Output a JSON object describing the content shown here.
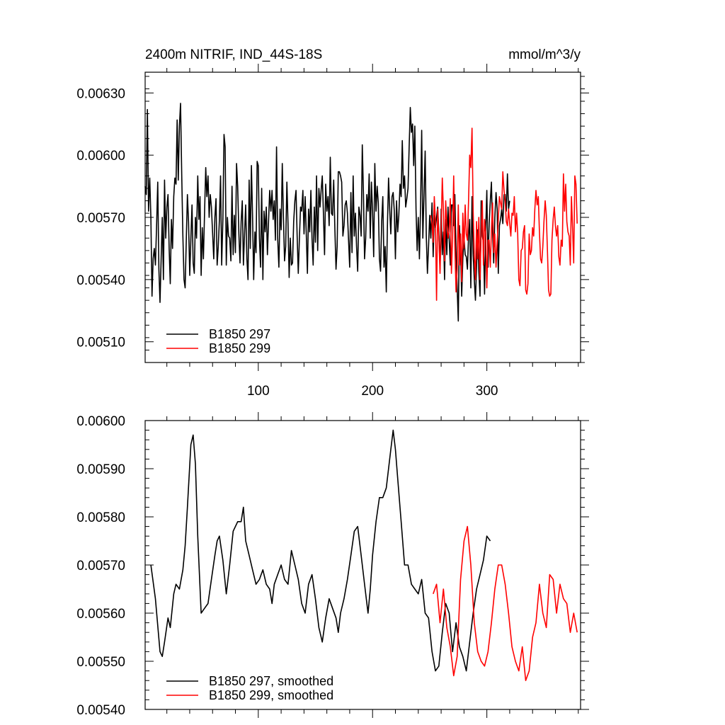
{
  "figure": {
    "title_left": "2400m NITRIF, IND_44S-18S",
    "title_right": "mmol/m^3/y"
  },
  "colors": {
    "series_1": "#000000",
    "series_2": "#ff0000"
  },
  "chart_data": [
    {
      "type": "line",
      "panel": "top",
      "xlim": [
        1,
        382
      ],
      "ylim": [
        0.005,
        0.0064
      ],
      "x_ticks": [
        100,
        200,
        300
      ],
      "x_tick_labels": [
        "100",
        "200",
        "300"
      ],
      "y_ticks": [
        0.0051,
        0.0054,
        0.0057,
        0.006,
        0.0063
      ],
      "y_tick_labels": [
        "0.00510",
        "0.00540",
        "0.00570",
        "0.00600",
        "0.00630"
      ],
      "grid": false,
      "legend_position": "bottom-left",
      "series": [
        {
          "name": "B1850 297",
          "color": "#000000",
          "x_start": 1,
          "values": [
            0.00585,
            0.00581,
            0.00622,
            0.00573,
            0.00589,
            0.0057,
            0.00532,
            0.0055,
            0.00555,
            0.00547,
            0.00565,
            0.00587,
            0.00545,
            0.00529,
            0.0055,
            0.0057,
            0.0054,
            0.00588,
            0.0056,
            0.00575,
            0.00581,
            0.00555,
            0.00538,
            0.00569,
            0.00555,
            0.0058,
            0.00589,
            0.00586,
            0.00617,
            0.00588,
            0.00614,
            0.00625,
            0.0059,
            0.00561,
            0.0054,
            0.00536,
            0.00559,
            0.00581,
            0.00568,
            0.00542,
            0.0056,
            0.00576,
            0.00548,
            0.00543,
            0.0057,
            0.0056,
            0.0059,
            0.00569,
            0.0058,
            0.00542,
            0.00565,
            0.0055,
            0.00572,
            0.00594,
            0.0058,
            0.0059,
            0.0057,
            0.00581,
            0.00575,
            0.00563,
            0.0055,
            0.0057,
            0.00579,
            0.00547,
            0.00556,
            0.00569,
            0.0059,
            0.00547,
            0.00569,
            0.0061,
            0.00604,
            0.00547,
            0.0057,
            0.00561,
            0.0056,
            0.00549,
            0.00585,
            0.00552,
            0.00571,
            0.00553,
            0.00596,
            0.00585,
            0.00562,
            0.00548,
            0.00568,
            0.00578,
            0.00547,
            0.00562,
            0.00576,
            0.0055,
            0.0054,
            0.00588,
            0.00555,
            0.00595,
            0.00571,
            0.0054,
            0.00563,
            0.00553,
            0.00597,
            0.00595,
            0.0056,
            0.00546,
            0.00584,
            0.0054,
            0.00573,
            0.00563,
            0.00575,
            0.00552,
            0.00568,
            0.00583,
            0.00573,
            0.00583,
            0.00569,
            0.00578,
            0.00559,
            0.00604,
            0.0056,
            0.00546,
            0.00574,
            0.00564,
            0.00596,
            0.0057,
            0.00549,
            0.00556,
            0.00587,
            0.00567,
            0.00541,
            0.0056,
            0.00547,
            0.00548,
            0.00568,
            0.00578,
            0.00583,
            0.00561,
            0.00543,
            0.0056,
            0.00575,
            0.00573,
            0.00583,
            0.00562,
            0.0058,
            0.00562,
            0.00543,
            0.00574,
            0.00563,
            0.00583,
            0.0056,
            0.00547,
            0.00575,
            0.00558,
            0.0059,
            0.00554,
            0.00584,
            0.00575,
            0.00583,
            0.0059,
            0.00572,
            0.00552,
            0.00586,
            0.00573,
            0.0058,
            0.00566,
            0.00599,
            0.00572,
            0.00571,
            0.00588,
            0.00564,
            0.00545,
            0.00556,
            0.00592,
            0.00592,
            0.0059,
            0.00587,
            0.00561,
            0.00566,
            0.00576,
            0.00578,
            0.00572,
            0.00559,
            0.00546,
            0.00582,
            0.00553,
            0.0059,
            0.00561,
            0.00572,
            0.00556,
            0.00544,
            0.00575,
            0.00571,
            0.00561,
            0.00605,
            0.00582,
            0.0055,
            0.0056,
            0.00581,
            0.00573,
            0.00591,
            0.0056,
            0.00587,
            0.00573,
            0.00551,
            0.00596,
            0.00573,
            0.00585,
            0.00577,
            0.0055,
            0.00544,
            0.00568,
            0.0058,
            0.00546,
            0.00556,
            0.00534,
            0.00566,
            0.00589,
            0.00574,
            0.00562,
            0.0058,
            0.00582,
            0.00573,
            0.0055,
            0.00578,
            0.00563,
            0.00571,
            0.00586,
            0.0058,
            0.00607,
            0.00584,
            0.0059,
            0.00575,
            0.00579,
            0.00584,
            0.00604,
            0.00623,
            0.00611,
            0.00615,
            0.00595,
            0.00614,
            0.00574,
            0.00554,
            0.0057,
            0.0055,
            0.00575,
            0.00612,
            0.0056,
            0.00581,
            0.00602,
            0.00561,
            0.00543,
            0.00556,
            0.00571,
            0.0056,
            0.00577,
            0.00551,
            0.00571,
            0.00565,
            0.0057,
            0.00575,
            0.00563,
            0.00545,
            0.00574,
            0.00552,
            0.00563,
            0.0054,
            0.00569,
            0.00552,
            0.00575,
            0.0056,
            0.00547,
            0.00576,
            0.00576,
            0.00566,
            0.00581,
            0.00554,
            0.00536,
            0.0052,
            0.00566,
            0.00553,
            0.00532,
            0.0055,
            0.0056,
            0.00552,
            0.00551,
            0.00545,
            0.00561,
            0.00569,
            0.00536,
            0.0058,
            0.00552,
            0.0054,
            0.0053,
            0.00546,
            0.00564,
            0.00544,
            0.00532,
            0.00578,
            0.00561,
            0.00558,
            0.00533,
            0.00564,
            0.00583,
            0.00546,
            0.00567,
            0.00578,
            0.00587,
            0.00563,
            0.00548,
            0.0057,
            0.00582,
            0.00574,
            0.00543,
            0.00566,
            0.00569,
            0.00574,
            0.00567,
            0.00581,
            0.00581,
            0.00573,
            0.00591,
            0.00574,
            0.00578
          ]
        },
        {
          "name": "B1850 299",
          "color": "#ff0000",
          "x_start": 251,
          "values": [
            0.00571,
            0.00567,
            0.00558,
            0.0058,
            0.00568,
            0.0053,
            0.00574,
            0.00561,
            0.00543,
            0.00565,
            0.00589,
            0.00573,
            0.00549,
            0.00578,
            0.00567,
            0.0056,
            0.00563,
            0.00579,
            0.00543,
            0.0056,
            0.0059,
            0.00557,
            0.00534,
            0.00545,
            0.00576,
            0.00547,
            0.00562,
            0.00539,
            0.00572,
            0.00555,
            0.00576,
            0.00562,
            0.00559,
            0.00578,
            0.006,
            0.00594,
            0.00613,
            0.00573,
            0.00552,
            0.0054,
            0.00568,
            0.0055,
            0.0057,
            0.0054,
            0.00563,
            0.00578,
            0.00547,
            0.00569,
            0.00562,
            0.00536,
            0.00559,
            0.00559,
            0.00546,
            0.00564,
            0.00577,
            0.00553,
            0.00562,
            0.00546,
            0.00558,
            0.00569,
            0.0058,
            0.00577,
            0.00574,
            0.00592,
            0.00583,
            0.00578,
            0.00568,
            0.00566,
            0.00574,
            0.00567,
            0.00561,
            0.00572,
            0.00571,
            0.0058,
            0.00563,
            0.00572,
            0.00562,
            0.0054,
            0.00537,
            0.00554,
            0.00555,
            0.00563,
            0.00566,
            0.00535,
            0.00533,
            0.00538,
            0.00562,
            0.00552,
            0.00554,
            0.00565,
            0.00561,
            0.00574,
            0.00583,
            0.00576,
            0.0058,
            0.00563,
            0.0055,
            0.00548,
            0.00556,
            0.00568,
            0.00578,
            0.00571,
            0.00554,
            0.00535,
            0.00532,
            0.00533,
            0.00559,
            0.00569,
            0.00575,
            0.00566,
            0.00561,
            0.00566,
            0.00551,
            0.00547,
            0.00559,
            0.00556,
            0.00591,
            0.00573,
            0.00586,
            0.00568,
            0.00563,
            0.00561,
            0.00547,
            0.0058,
            0.00565,
            0.00548,
            0.0059,
            0.00586,
            0.00567
          ]
        }
      ]
    },
    {
      "type": "line",
      "panel": "bottom",
      "xlim": [
        1,
        382
      ],
      "ylim": [
        0.0054,
        0.006
      ],
      "y_ticks": [
        0.0054,
        0.0055,
        0.0056,
        0.0057,
        0.0058,
        0.0059,
        0.006
      ],
      "y_tick_labels": [
        "0.00540",
        "0.00550",
        "0.00560",
        "0.00570",
        "0.00580",
        "0.00590",
        "0.00600"
      ],
      "grid": false,
      "legend_position": "bottom-left",
      "series": [
        {
          "name": "B1850 297, smoothed",
          "color": "#000000",
          "x": [
            6,
            10,
            14,
            16,
            18,
            21,
            23,
            26,
            28,
            31,
            34,
            36,
            38,
            41,
            43,
            45,
            47,
            50,
            53,
            56,
            59,
            62,
            64,
            66,
            69,
            72,
            75,
            78,
            82,
            85,
            87,
            89,
            92,
            95,
            98,
            101,
            104,
            107,
            110,
            112,
            114,
            117,
            120,
            123,
            126,
            129,
            132,
            135,
            138,
            141,
            144,
            147,
            150,
            153,
            156,
            159,
            162,
            165,
            168,
            170,
            172,
            175,
            178,
            181,
            184,
            187,
            190,
            193,
            196,
            198,
            200,
            203,
            206,
            209,
            212,
            214,
            216,
            218,
            220,
            222,
            225,
            228,
            231,
            234,
            237,
            240,
            243,
            246,
            249,
            252,
            255,
            258,
            261,
            264,
            267,
            270,
            273,
            276,
            279,
            282,
            285,
            288,
            291,
            294,
            297,
            300,
            303
          ],
          "y": [
            0.0057,
            0.00563,
            0.00552,
            0.00551,
            0.00554,
            0.00559,
            0.00557,
            0.00564,
            0.00566,
            0.00565,
            0.00569,
            0.00574,
            0.00582,
            0.00595,
            0.00597,
            0.00591,
            0.00576,
            0.0056,
            0.00561,
            0.00562,
            0.00567,
            0.00572,
            0.00575,
            0.00576,
            0.00571,
            0.00564,
            0.0057,
            0.00577,
            0.00579,
            0.00579,
            0.00582,
            0.00575,
            0.00572,
            0.00569,
            0.00566,
            0.00567,
            0.00569,
            0.00566,
            0.00565,
            0.00562,
            0.00566,
            0.00568,
            0.0057,
            0.00567,
            0.00566,
            0.00573,
            0.0057,
            0.00567,
            0.00562,
            0.0056,
            0.00566,
            0.00568,
            0.00563,
            0.00557,
            0.00554,
            0.00559,
            0.00563,
            0.00561,
            0.00559,
            0.00556,
            0.0056,
            0.00563,
            0.00567,
            0.00572,
            0.00577,
            0.00578,
            0.00572,
            0.00566,
            0.0056,
            0.00565,
            0.00572,
            0.00579,
            0.00584,
            0.00584,
            0.00586,
            0.0059,
            0.00594,
            0.00598,
            0.00594,
            0.00588,
            0.00579,
            0.0057,
            0.0057,
            0.00566,
            0.00565,
            0.00564,
            0.00567,
            0.0056,
            0.00559,
            0.00552,
            0.00548,
            0.00549,
            0.00556,
            0.00562,
            0.0056,
            0.00552,
            0.00558,
            0.00553,
            0.00551,
            0.00548,
            0.00554,
            0.0056,
            0.00565,
            0.00568,
            0.00571,
            0.00576,
            0.00575
          ]
        },
        {
          "name": "B1850 299, smoothed",
          "color": "#ff0000",
          "x": [
            253,
            256,
            259,
            262,
            265,
            268,
            271,
            274,
            277,
            280,
            283,
            286,
            289,
            292,
            295,
            298,
            301,
            304,
            307,
            310,
            313,
            316,
            319,
            322,
            325,
            328,
            331,
            334,
            337,
            340,
            343,
            346,
            349,
            352,
            355,
            358,
            361,
            364,
            367,
            370,
            373,
            376,
            379
          ],
          "y": [
            0.00564,
            0.00566,
            0.00558,
            0.00565,
            0.00557,
            0.00553,
            0.00547,
            0.00551,
            0.00567,
            0.00575,
            0.00578,
            0.0057,
            0.00558,
            0.00552,
            0.0055,
            0.00549,
            0.00552,
            0.00558,
            0.00565,
            0.0057,
            0.0057,
            0.00566,
            0.0056,
            0.00553,
            0.0055,
            0.00548,
            0.00553,
            0.00546,
            0.00548,
            0.00555,
            0.00558,
            0.00566,
            0.0056,
            0.00557,
            0.00568,
            0.00567,
            0.0056,
            0.00566,
            0.00563,
            0.00562,
            0.00556,
            0.0056,
            0.00556
          ]
        }
      ]
    }
  ]
}
